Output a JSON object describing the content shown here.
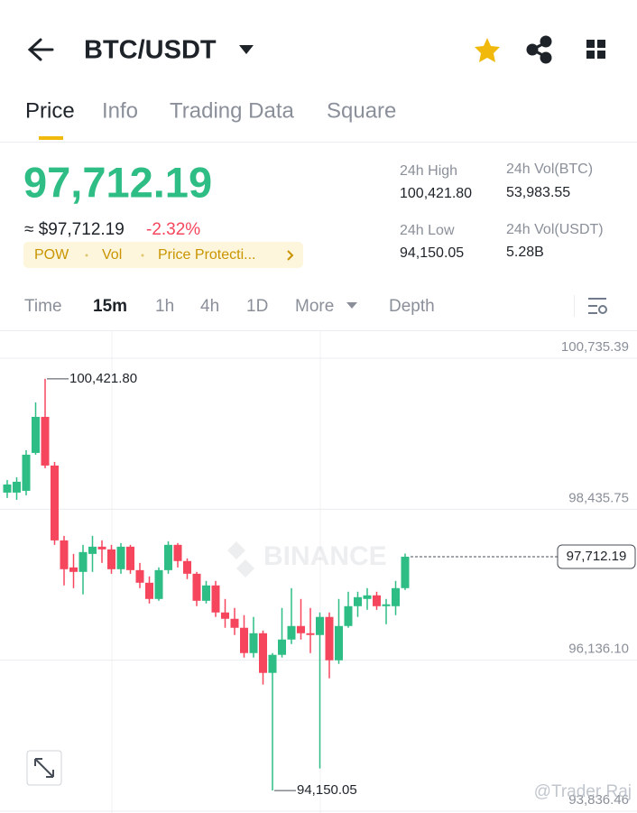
{
  "header": {
    "pair": "BTC/USDT"
  },
  "tabs": [
    "Price",
    "Info",
    "Trading Data",
    "Square"
  ],
  "price": {
    "last": "97,712.19",
    "fiat": "≈ $97,712.19",
    "change": "-2.32%"
  },
  "chips": [
    "POW",
    "Vol",
    "Price Protecti..."
  ],
  "stats": [
    {
      "label": "24h High",
      "value": "100,421.80"
    },
    {
      "label": "24h Low",
      "value": "94,150.05"
    },
    {
      "label": "24h Vol(BTC)",
      "value": "53,983.55"
    },
    {
      "label": "24h Vol(USDT)",
      "value": "5.28B"
    }
  ],
  "intervals": [
    "Time",
    "15m",
    "1h",
    "4h",
    "1D",
    "More",
    "Depth"
  ],
  "watermarks": [
    "BINANCE",
    "@Trader Raj"
  ],
  "chart_data": {
    "type": "candlestick",
    "up_color": "#2ebd85",
    "down_color": "#f6465d",
    "ylim": [
      93836.46,
      100735.39
    ],
    "yticks": [
      {
        "value": 100735.39,
        "label": "100,735.39"
      },
      {
        "value": 98435.75,
        "label": "98,435.75"
      },
      {
        "value": 96136.1,
        "label": "96,136.10"
      },
      {
        "value": 93836.46,
        "label": "93,836.46"
      }
    ],
    "grid": true,
    "open": [
      98689,
      98689,
      98716,
      99293,
      99842,
      99101,
      97961,
      97549,
      97481,
      97755,
      97865,
      97824,
      97522,
      97865,
      97508,
      97316,
      97069,
      97508,
      97893,
      97646,
      97453,
      97041,
      97275,
      96863,
      96767,
      96630,
      96245,
      96547,
      95943,
      96218,
      96451,
      96657,
      96547,
      96520,
      96795,
      96135,
      96657,
      96959,
      97069,
      97124,
      96959,
      96959,
      97234
    ],
    "high": [
      98881,
      98922,
      99334,
      100062,
      100421.8,
      99156,
      98030,
      97755,
      97893,
      98030,
      97961,
      97893,
      97920,
      97893,
      97618,
      97412,
      97549,
      97948,
      97920,
      97687,
      97481,
      97344,
      97344,
      97069,
      96932,
      96822,
      96795,
      96588,
      96245,
      96932,
      97234,
      97069,
      96932,
      96863,
      96863,
      97069,
      97179,
      97179,
      97234,
      97179,
      97069,
      97344,
      97760
    ],
    "low": [
      98607,
      98579,
      98648,
      99266,
      99060,
      97893,
      97275,
      97234,
      97138,
      97481,
      97618,
      97453,
      97453,
      97453,
      97234,
      97000,
      97041,
      97453,
      97549,
      97371,
      96959,
      97000,
      96795,
      96630,
      96520,
      96177,
      96177,
      95765,
      94150.05,
      96177,
      96382,
      96451,
      96245,
      94488,
      95861,
      96080,
      96630,
      96795,
      96904,
      96904,
      96684,
      96822,
      97206
    ],
    "close": [
      98813,
      98854,
      99266,
      99842,
      99101,
      97961,
      97522,
      97481,
      97783,
      97865,
      97824,
      97522,
      97865,
      97508,
      97316,
      97069,
      97508,
      97893,
      97646,
      97453,
      97041,
      97275,
      96863,
      96767,
      96630,
      96245,
      96547,
      95943,
      96218,
      96451,
      96657,
      96547,
      96520,
      96795,
      96135,
      96657,
      96959,
      97096,
      97124,
      96959,
      96987,
      97234,
      97712.19
    ],
    "annotations": [
      {
        "value": 100421.8,
        "label": "100,421.80"
      },
      {
        "value": 94150.05,
        "label": "94,150.05"
      }
    ],
    "last_price": {
      "value": 97712.19,
      "label": "97,712.19"
    }
  }
}
